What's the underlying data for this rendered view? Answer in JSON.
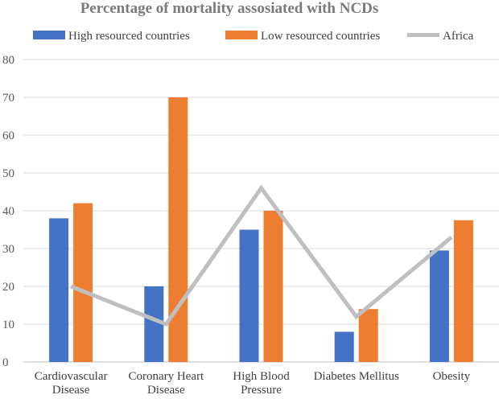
{
  "chart_data": {
    "type": "bar",
    "title": "Percentage of mortality assosiated with NCDs",
    "categories": [
      [
        "Cardiovascular",
        "Disease"
      ],
      [
        "Coronary Heart",
        "Disease"
      ],
      [
        "High Blood",
        "Pressure"
      ],
      [
        "Diabetes Mellitus"
      ],
      [
        "Obesity"
      ]
    ],
    "series": [
      {
        "name": "High resourced countries",
        "type": "bar",
        "color": "#4472c4",
        "values": [
          38,
          20,
          35,
          8,
          29.5
        ]
      },
      {
        "name": "Low resourced countries",
        "type": "bar",
        "color": "#ed7d31",
        "values": [
          42,
          70,
          40,
          14,
          37.5
        ]
      },
      {
        "name": "Africa",
        "type": "line",
        "color": "#bfbfbf",
        "values": [
          20,
          10,
          46,
          12,
          33
        ]
      }
    ],
    "ylim": [
      0,
      80
    ],
    "yticks": [
      0,
      10,
      20,
      30,
      40,
      50,
      60,
      70,
      80
    ],
    "grid": true,
    "legend_position": "top"
  }
}
